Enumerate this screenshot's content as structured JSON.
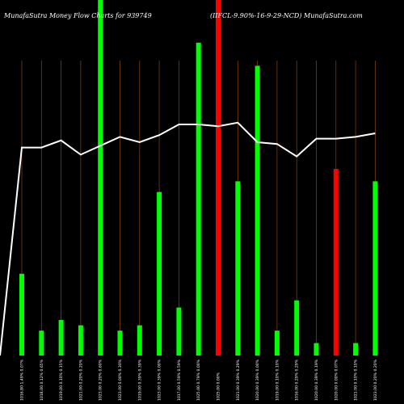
{
  "header": {
    "left": "MunafaSutra  Money Flow  Charts for 939749",
    "right": "(IIFCL-9.90%-16-9-29-NCD) MunafaSutra.com"
  },
  "chart_data": {
    "type": "bar",
    "ylim": [
      0,
      100
    ],
    "line_ylim": [
      0,
      100
    ],
    "grid": "vertical",
    "categories": [
      "1016.80 1.49% 0.07%",
      "1018.00 0.12% 0.65%",
      "1019.00 0.10% 0.15%",
      "1021.00 0.20% 0.20%",
      "1023.00 0.20% 0.60%",
      "1023.00 0.00% 0.30%",
      "1019.00 0.39% 0.39%",
      "1023.00 0.39% 0.00%",
      "1017.00 0.59% 0.59%",
      "1025.00 0.79% 0.00%",
      "1025.00 0.00%",
      "1021.00 0.39% 0.29%",
      "1020.00 0.39% 0.00%",
      "1019.00 0.10% 0.10%",
      "1016.00 0.29% 0.29%",
      "1020.00 0.39% 0.19%",
      "1020.00 0.00% 0.07%",
      "1021.00 0.10% 0.10%",
      "1023.00 0.20% 0.20%"
    ],
    "bars": [
      {
        "value": 23,
        "color": "#00ff00"
      },
      {
        "value": 7,
        "color": "#00ff00"
      },
      {
        "value": 10,
        "color": "#00ff00"
      },
      {
        "value": 8.5,
        "color": "#00ff00"
      },
      {
        "value": 100,
        "color": "#00ff00"
      },
      {
        "value": 7,
        "color": "#00ff00"
      },
      {
        "value": 8.5,
        "color": "#00ff00"
      },
      {
        "value": 46,
        "color": "#00ff00"
      },
      {
        "value": 13.5,
        "color": "#00ff00"
      },
      {
        "value": 88,
        "color": "#00ff00"
      },
      {
        "value": 100,
        "color": "#ff0000"
      },
      {
        "value": 49,
        "color": "#00ff00"
      },
      {
        "value": 81.5,
        "color": "#00ff00"
      },
      {
        "value": 7,
        "color": "#00ff00"
      },
      {
        "value": 15.5,
        "color": "#00ff00"
      },
      {
        "value": 3.5,
        "color": "#00ff00"
      },
      {
        "value": 52.5,
        "color": "#ff0000"
      },
      {
        "value": 3.5,
        "color": "#00ff00"
      },
      {
        "value": 49,
        "color": "#00ff00"
      }
    ],
    "line_start": 0,
    "line_values": [
      58.5,
      58.5,
      60.5,
      56.5,
      59,
      61.5,
      60,
      62,
      65,
      65,
      64.5,
      65.5,
      60,
      59.5,
      56,
      61,
      61,
      61.5,
      62.5
    ],
    "colors": {
      "background": "#000000",
      "grid": "#8b4513",
      "line": "#ffffff",
      "up": "#00ff00",
      "down": "#ff0000"
    }
  }
}
